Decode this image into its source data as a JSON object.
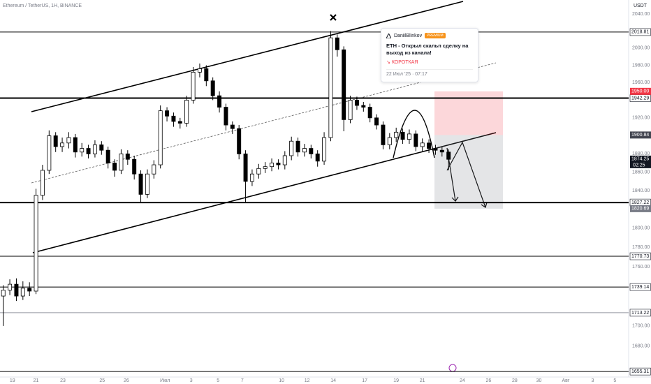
{
  "chart_data": {
    "type": "candlestick",
    "title": "Ethereum / TetherUS, 1H, BINANCE",
    "unit": "USDT",
    "log_scale": true,
    "up_color": "#ffffff",
    "down_color": "#000000",
    "x": [
      0.5,
      1.5,
      2.5,
      3.5,
      4.5,
      5.5,
      6.5,
      7.5,
      8.5,
      9.5,
      10.5,
      11.5,
      12.5,
      13.5,
      14.5,
      15.5,
      16.5,
      17.5,
      18.5,
      19.5,
      20.5,
      21.5,
      22.5,
      23.5,
      24.5,
      25.5,
      26.5,
      27.5,
      28.5,
      29.5,
      30.5,
      31.5,
      32.5,
      33.5,
      34.5,
      35.5,
      36.5,
      37.5,
      38.5,
      39.5,
      40.5,
      41.5,
      42.5,
      43.5,
      44.5,
      45.5,
      46.5,
      47.5,
      48.5,
      49.5,
      50.5,
      51.5,
      52.5,
      53.5,
      54.5,
      55.5,
      56.5,
      57.5,
      58.5,
      59.5,
      60.5,
      61.5,
      62.5,
      63.5,
      64.5,
      65.5,
      66.5,
      67.5,
      68.5
    ],
    "open": [
      1730,
      1736,
      1742,
      1730,
      1738,
      1735,
      1835,
      1862,
      1900,
      1888,
      1892,
      1898,
      1882,
      1886,
      1880,
      1890,
      1884,
      1870,
      1862,
      1880,
      1874,
      1858,
      1836,
      1858,
      1868,
      1928,
      1922,
      1916,
      1914,
      1940,
      1972,
      1976,
      1962,
      1945,
      1932,
      1912,
      1908,
      1880,
      1850,
      1858,
      1864,
      1866,
      1870,
      1868,
      1878,
      1894,
      1882,
      1886,
      1880,
      1872,
      1898,
      2012,
      1998,
      1918,
      1940,
      1934,
      1932,
      1920,
      1912,
      1890,
      1898,
      1904,
      1896,
      1902,
      1888,
      1892,
      1886,
      1884,
      1882
    ],
    "high": [
      1741,
      1747,
      1748,
      1745,
      1744,
      1842,
      1868,
      1906,
      1904,
      1898,
      1904,
      1902,
      1892,
      1890,
      1895,
      1894,
      1888,
      1874,
      1885,
      1884,
      1878,
      1862,
      1863,
      1873,
      1934,
      1932,
      1926,
      1920,
      1945,
      1978,
      1982,
      1980,
      1966,
      1950,
      1936,
      1916,
      1912,
      1884,
      1863,
      1869,
      1871,
      1875,
      1874,
      1883,
      1899,
      1898,
      1891,
      1890,
      1884,
      1904,
      2020,
      2016,
      2002,
      1945,
      1944,
      1938,
      1936,
      1924,
      1916,
      1903,
      1909,
      1908,
      1907,
      1906,
      1897,
      1896,
      1890,
      1888,
      1885
    ],
    "low": [
      1700,
      1731,
      1725,
      1726,
      1730,
      1732,
      1830,
      1858,
      1882,
      1882,
      1886,
      1876,
      1877,
      1875,
      1876,
      1879,
      1864,
      1855,
      1858,
      1868,
      1852,
      1827,
      1832,
      1853,
      1864,
      1916,
      1910,
      1908,
      1910,
      1936,
      1966,
      1956,
      1940,
      1926,
      1906,
      1902,
      1874,
      1828,
      1845,
      1853,
      1859,
      1861,
      1863,
      1863,
      1873,
      1877,
      1877,
      1875,
      1866,
      1868,
      1894,
      1990,
      1905,
      1914,
      1929,
      1927,
      1915,
      1907,
      1885,
      1885,
      1893,
      1891,
      1891,
      1883,
      1883,
      1881,
      1879,
      1877,
      1862
    ],
    "close": [
      1736,
      1742,
      1730,
      1738,
      1735,
      1835,
      1862,
      1900,
      1888,
      1892,
      1898,
      1882,
      1886,
      1880,
      1890,
      1884,
      1870,
      1862,
      1880,
      1874,
      1858,
      1836,
      1858,
      1868,
      1928,
      1922,
      1916,
      1914,
      1940,
      1972,
      1976,
      1962,
      1945,
      1932,
      1912,
      1908,
      1880,
      1850,
      1858,
      1864,
      1866,
      1870,
      1868,
      1878,
      1894,
      1882,
      1886,
      1880,
      1872,
      1898,
      2012,
      1998,
      1918,
      1940,
      1934,
      1932,
      1920,
      1912,
      1890,
      1898,
      1904,
      1896,
      1902,
      1888,
      1892,
      1886,
      1884,
      1882,
      1874
    ],
    "xlim": [
      0,
      96
    ],
    "xticks": [
      {
        "value": 1.9,
        "label": "19"
      },
      {
        "value": 5.5,
        "label": "21"
      },
      {
        "value": 9.6,
        "label": "23"
      },
      {
        "value": 15.6,
        "label": "25"
      },
      {
        "value": 19.3,
        "label": "26"
      },
      {
        "value": 25.2,
        "label": "Июл"
      },
      {
        "value": 29.2,
        "label": "3"
      },
      {
        "value": 33.3,
        "label": "5"
      },
      {
        "value": 37,
        "label": "7"
      },
      {
        "value": 43,
        "label": "10"
      },
      {
        "value": 46.9,
        "label": "12"
      },
      {
        "value": 50.9,
        "label": "14"
      },
      {
        "value": 55.7,
        "label": "17"
      },
      {
        "value": 60.5,
        "label": "19"
      },
      {
        "value": 64.5,
        "label": "21"
      },
      {
        "value": 70.6,
        "label": "24"
      },
      {
        "value": 74.6,
        "label": "26"
      },
      {
        "value": 78.6,
        "label": "28"
      },
      {
        "value": 82.3,
        "label": "30"
      },
      {
        "value": 86.4,
        "label": "Авг"
      },
      {
        "value": 90.5,
        "label": "3"
      },
      {
        "value": 93.9,
        "label": "5"
      }
    ],
    "ylim": [
      1650,
      2057
    ],
    "yticks": [
      {
        "value": 2040,
        "label": "2040.00"
      },
      {
        "value": 2000,
        "label": "2000.00"
      },
      {
        "value": 1980,
        "label": "1980.00"
      },
      {
        "value": 1960,
        "label": "1960.00"
      },
      {
        "value": 1920,
        "label": "1920.00"
      },
      {
        "value": 1880,
        "label": "1880.00"
      },
      {
        "value": 1860,
        "label": "1860.00"
      },
      {
        "value": 1840,
        "label": "1840.00"
      },
      {
        "value": 1800,
        "label": "1800.00"
      },
      {
        "value": 1780,
        "label": "1780.00"
      },
      {
        "value": 1760,
        "label": "1760.00"
      },
      {
        "value": 1700,
        "label": "1700.00"
      },
      {
        "value": 1680,
        "label": "1680.00"
      }
    ],
    "levels": [
      2018.81,
      1942.29,
      1827.22,
      1770.73,
      1739.14,
      1713.22,
      1655.31
    ],
    "position": {
      "stop": {
        "value": 1950,
        "label": "1950.00"
      },
      "entry": 1900.84,
      "target": 1820.69
    },
    "last_price": 1874.25,
    "countdown": "02:25"
  },
  "idea": {
    "author": "DaniilBlinkov",
    "badge": "PREMIUM",
    "title": "ETH - Открыл скальп сделку на выход из канала!",
    "direction": "КОРОТКАЯ",
    "date": "22 Июл '25 · 07:17"
  }
}
